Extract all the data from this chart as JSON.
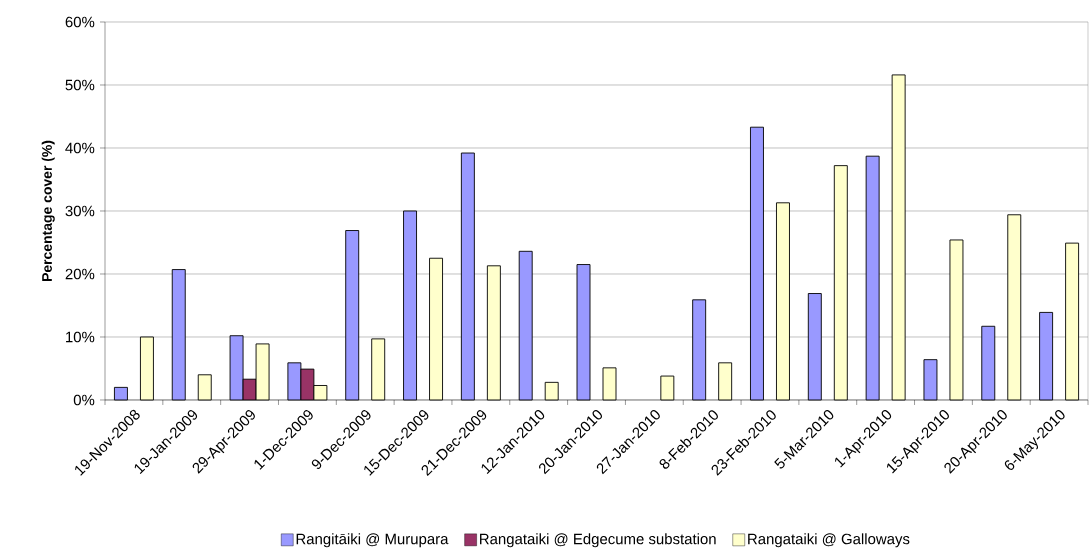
{
  "chart_data": {
    "type": "bar",
    "ylabel": "Percentage cover (%)",
    "categories": [
      "19-Nov-2008",
      "19-Jan-2009",
      "29-Apr-2009",
      "1-Dec-2009",
      "9-Dec-2009",
      "15-Dec-2009",
      "21-Dec-2009",
      "12-Jan-2010",
      "20-Jan-2010",
      "27-Jan-2010",
      "8-Feb-2010",
      "23-Feb-2010",
      "5-Mar-2010",
      "1-Apr-2010",
      "15-Apr-2010",
      "20-Apr-2010",
      "6-May-2010"
    ],
    "series": [
      {
        "name": "Rangitāiki @ Murupara",
        "color": "#9999ff",
        "values": [
          2.0,
          20.7,
          10.2,
          5.9,
          26.9,
          30.0,
          39.2,
          23.6,
          21.5,
          null,
          15.9,
          43.3,
          16.9,
          38.7,
          6.4,
          11.7,
          13.9
        ]
      },
      {
        "name": "Rangataiki @ Edgecume substation",
        "color": "#993366",
        "values": [
          null,
          null,
          3.3,
          4.9,
          null,
          null,
          null,
          null,
          null,
          null,
          null,
          null,
          null,
          null,
          null,
          null,
          null
        ]
      },
      {
        "name": "Rangataiki @ Galloways",
        "color": "#ffffcc",
        "values": [
          10.0,
          4.0,
          8.9,
          2.3,
          9.7,
          22.5,
          21.3,
          2.8,
          5.1,
          3.8,
          5.9,
          31.3,
          37.2,
          51.6,
          25.4,
          29.4,
          24.9
        ]
      }
    ],
    "ylim": [
      0,
      60
    ],
    "yticks": [
      {
        "value": 0,
        "label": "0%"
      },
      {
        "value": 10,
        "label": "10%"
      },
      {
        "value": 20,
        "label": "20%"
      },
      {
        "value": 30,
        "label": "30%"
      },
      {
        "value": 40,
        "label": "40%"
      },
      {
        "value": 50,
        "label": "50%"
      },
      {
        "value": 60,
        "label": "60%"
      }
    ],
    "grid": "y",
    "legend": "bottom"
  }
}
